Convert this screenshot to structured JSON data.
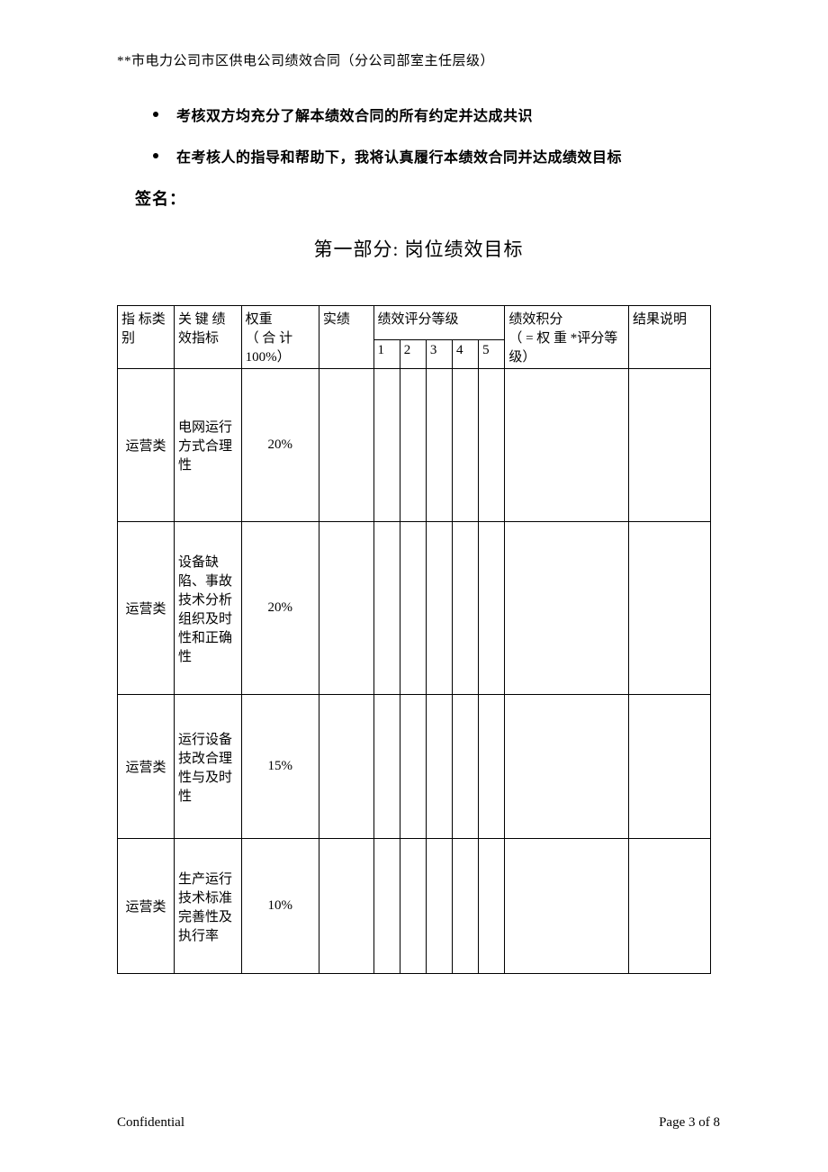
{
  "header": {
    "title": "**市电力公司市区供电公司绩效合同（分公司部室主任层级）"
  },
  "bullets": {
    "b1": "考核双方均充分了解本绩效合同的所有约定并达成共识",
    "b2": "在考核人的指导和帮助下，我将认真履行本绩效合同并达成绩效目标"
  },
  "signature_label": "签名：",
  "section_title": "第一部分:  岗位绩效目标",
  "table": {
    "headers": {
      "category": "指 标类别",
      "kpi": "关 键 绩效指标",
      "weight_line1": "权重",
      "weight_line2": "（ 合 计100%）",
      "actual": "实绩",
      "rating": "绩效评分等级",
      "r1": "1",
      "r2": "2",
      "r3": "3",
      "r4": "4",
      "r5": "5",
      "score_line1": "绩效积分",
      "score_line2": "（ = 权 重 *评分等级）",
      "result": "结果说明"
    },
    "rows": [
      {
        "category": "运营类",
        "kpi": "电网运行方式合理性",
        "weight": "20%"
      },
      {
        "category": "运营类",
        "kpi": "设备缺陷、事故技术分析组织及时性和正确性",
        "weight": "20%"
      },
      {
        "category": "运营类",
        "kpi": "运行设备技改合理性与及时性",
        "weight": "15%"
      },
      {
        "category": "运营类",
        "kpi": "生产运行技术标准完善性及执行率",
        "weight": "10%"
      }
    ]
  },
  "footer": {
    "left": "Confidential",
    "right": "Page 3 of 8"
  }
}
